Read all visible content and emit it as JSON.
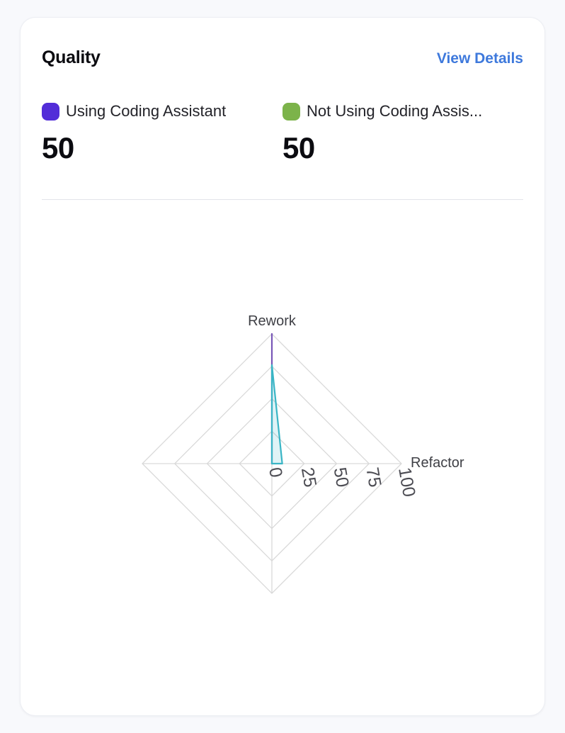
{
  "card": {
    "title": "Quality",
    "view_details_label": "View Details",
    "link_color": "#3e79dc",
    "metrics": [
      {
        "label": "Using Coding Assistant",
        "value": "50",
        "swatch_color": "#522dd8"
      },
      {
        "label": "Not Using Coding Assis...",
        "value": "50",
        "swatch_color": "#7cb34a"
      }
    ]
  },
  "chart_data": {
    "type": "radar",
    "indicators": [
      {
        "name": "Rework",
        "max": 100
      },
      {
        "name": "Refactor",
        "max": 100
      },
      {
        "name": "",
        "max": 100
      },
      {
        "name": "",
        "max": 100
      }
    ],
    "levels": 4,
    "tick_labels": [
      "0",
      "25",
      "50",
      "75",
      "100"
    ],
    "grid_color": "#d9d9d9",
    "legend_position": "top",
    "series": [
      {
        "name": "Using Coding Assistant",
        "color": "#7857b8",
        "fill": "none",
        "values": [
          100,
          0,
          0,
          0
        ]
      },
      {
        "name": "Not Using Coding Assistant",
        "color": "#3ab5c5",
        "fill": "rgba(58,181,197,0.16)",
        "values": [
          76,
          8,
          0,
          0
        ]
      }
    ]
  }
}
